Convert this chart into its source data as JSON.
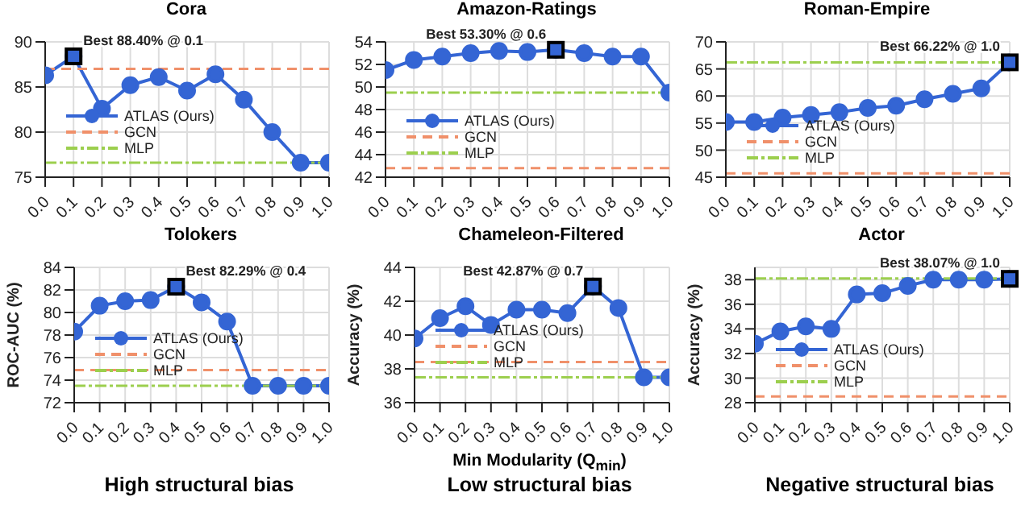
{
  "chart_data": [
    {
      "type": "line",
      "title": "Cora",
      "x": [
        0,
        0.1,
        0.2,
        0.3,
        0.4,
        0.5,
        0.6,
        0.7,
        0.8,
        0.9,
        1
      ],
      "xlim": [
        0,
        1
      ],
      "xticks": [
        {
          "value": 0,
          "label": "0.0"
        },
        {
          "value": 0.1,
          "label": "0.1"
        },
        {
          "value": 0.2,
          "label": "0.2"
        },
        {
          "value": 0.3,
          "label": "0.3"
        },
        {
          "value": 0.4,
          "label": "0.4"
        },
        {
          "value": 0.5,
          "label": "0.5"
        },
        {
          "value": 0.6,
          "label": "0.6"
        },
        {
          "value": 0.7,
          "label": "0.7"
        },
        {
          "value": 0.8,
          "label": "0.8"
        },
        {
          "value": 0.9,
          "label": "0.9"
        },
        {
          "value": 1,
          "label": "1.0"
        }
      ],
      "ylim": [
        75,
        90
      ],
      "yticks": [
        75,
        80,
        85,
        90
      ],
      "grid": true,
      "legend": "bottom left",
      "series": [
        {
          "name": "ATLAS (Ours)",
          "color": "#3465d4",
          "marker": "circle",
          "line_style": "solid",
          "values": [
            86.3,
            88.4,
            82.6,
            85.2,
            86.1,
            84.6,
            86.4,
            83.6,
            80.0,
            76.6,
            76.6
          ]
        },
        {
          "name": "GCN",
          "color": "#f0906a",
          "marker": "none",
          "line_style": "dashed",
          "values": [
            87.0,
            87.0,
            87.0,
            87.0,
            87.0,
            87.0,
            87.0,
            87.0,
            87.0,
            87.0,
            87.0
          ]
        },
        {
          "name": "MLP",
          "color": "#9ccf4e",
          "marker": "none",
          "line_style": "dotted",
          "values": [
            76.6,
            76.6,
            76.6,
            76.6,
            76.6,
            76.6,
            76.6,
            76.6,
            76.6,
            76.6,
            76.6
          ]
        }
      ],
      "annotations": [
        {
          "text": "Best 88.40% @ 0.1",
          "x": 0.1,
          "y": 88.4
        }
      ]
    },
    {
      "type": "line",
      "title": "Amazon-Ratings",
      "x": [
        0,
        0.1,
        0.2,
        0.3,
        0.4,
        0.5,
        0.6,
        0.7,
        0.8,
        0.9,
        1
      ],
      "xlim": [
        0,
        1
      ],
      "xticks": [
        {
          "value": 0,
          "label": "0.0"
        },
        {
          "value": 0.1,
          "label": "0.1"
        },
        {
          "value": 0.2,
          "label": "0.2"
        },
        {
          "value": 0.3,
          "label": "0.3"
        },
        {
          "value": 0.4,
          "label": "0.4"
        },
        {
          "value": 0.5,
          "label": "0.5"
        },
        {
          "value": 0.6,
          "label": "0.6"
        },
        {
          "value": 0.7,
          "label": "0.7"
        },
        {
          "value": 0.8,
          "label": "0.8"
        },
        {
          "value": 0.9,
          "label": "0.9"
        },
        {
          "value": 1,
          "label": "1.0"
        }
      ],
      "ylim": [
        42,
        54
      ],
      "yticks": [
        42,
        44,
        46,
        48,
        50,
        52,
        54
      ],
      "grid": true,
      "legend": "bottom left",
      "series": [
        {
          "name": "ATLAS (Ours)",
          "color": "#3465d4",
          "marker": "circle",
          "line_style": "solid",
          "values": [
            51.5,
            52.4,
            52.7,
            53.0,
            53.2,
            53.1,
            53.3,
            53.0,
            52.7,
            52.7,
            49.5
          ]
        },
        {
          "name": "GCN",
          "color": "#f0906a",
          "marker": "none",
          "line_style": "dashed",
          "values": [
            42.8,
            42.8,
            42.8,
            42.8,
            42.8,
            42.8,
            42.8,
            42.8,
            42.8,
            42.8,
            42.8
          ]
        },
        {
          "name": "MLP",
          "color": "#9ccf4e",
          "marker": "none",
          "line_style": "dotted",
          "values": [
            49.5,
            49.5,
            49.5,
            49.5,
            49.5,
            49.5,
            49.5,
            49.5,
            49.5,
            49.5,
            49.5
          ]
        }
      ],
      "annotations": [
        {
          "text": "Best 53.30% @ 0.6",
          "x": 0.6,
          "y": 53.3
        }
      ]
    },
    {
      "type": "line",
      "title": "Roman-Empire",
      "x": [
        0,
        0.1,
        0.2,
        0.3,
        0.4,
        0.5,
        0.6,
        0.7,
        0.8,
        0.9,
        1
      ],
      "xlim": [
        0,
        1
      ],
      "xticks": [
        {
          "value": 0,
          "label": "0.0"
        },
        {
          "value": 0.1,
          "label": "0.1"
        },
        {
          "value": 0.2,
          "label": "0.2"
        },
        {
          "value": 0.3,
          "label": "0.3"
        },
        {
          "value": 0.4,
          "label": "0.4"
        },
        {
          "value": 0.5,
          "label": "0.5"
        },
        {
          "value": 0.6,
          "label": "0.6"
        },
        {
          "value": 0.7,
          "label": "0.7"
        },
        {
          "value": 0.8,
          "label": "0.8"
        },
        {
          "value": 0.9,
          "label": "0.9"
        },
        {
          "value": 1,
          "label": "1.0"
        }
      ],
      "ylim": [
        45,
        70
      ],
      "yticks": [
        45,
        50,
        55,
        60,
        65,
        70
      ],
      "grid": true,
      "legend": "bottom left",
      "series": [
        {
          "name": "ATLAS (Ours)",
          "color": "#3465d4",
          "marker": "circle",
          "line_style": "solid",
          "values": [
            55.2,
            55.2,
            56.0,
            56.5,
            57.0,
            57.8,
            58.2,
            59.4,
            60.4,
            61.4,
            66.22
          ]
        },
        {
          "name": "GCN",
          "color": "#f0906a",
          "marker": "none",
          "line_style": "dashed",
          "values": [
            45.7,
            45.7,
            45.7,
            45.7,
            45.7,
            45.7,
            45.7,
            45.7,
            45.7,
            45.7,
            45.7
          ]
        },
        {
          "name": "MLP",
          "color": "#9ccf4e",
          "marker": "none",
          "line_style": "dotted",
          "values": [
            66.2,
            66.2,
            66.2,
            66.2,
            66.2,
            66.2,
            66.2,
            66.2,
            66.2,
            66.2,
            66.2
          ]
        }
      ],
      "annotations": [
        {
          "text": "Best 66.22% @ 1.0",
          "x": 1,
          "y": 66.22
        }
      ]
    },
    {
      "type": "line",
      "title": "Tolokers",
      "ylabel": "ROC-AUC (%)",
      "x": [
        0,
        0.1,
        0.2,
        0.3,
        0.4,
        0.5,
        0.6,
        0.7,
        0.8,
        0.9,
        1
      ],
      "xlim": [
        0,
        1
      ],
      "xticks": [
        {
          "value": 0,
          "label": "0.0"
        },
        {
          "value": 0.1,
          "label": "0.1"
        },
        {
          "value": 0.2,
          "label": "0.2"
        },
        {
          "value": 0.3,
          "label": "0.3"
        },
        {
          "value": 0.4,
          "label": "0.4"
        },
        {
          "value": 0.5,
          "label": "0.5"
        },
        {
          "value": 0.6,
          "label": "0.6"
        },
        {
          "value": 0.7,
          "label": "0.7"
        },
        {
          "value": 0.8,
          "label": "0.8"
        },
        {
          "value": 0.9,
          "label": "0.9"
        },
        {
          "value": 1,
          "label": "1.0"
        }
      ],
      "ylim": [
        72,
        84
      ],
      "yticks": [
        72,
        74,
        76,
        78,
        80,
        82,
        84
      ],
      "grid": true,
      "legend": "bottom left",
      "series": [
        {
          "name": "ATLAS (Ours)",
          "color": "#3465d4",
          "marker": "circle",
          "line_style": "solid",
          "values": [
            78.3,
            80.6,
            81.0,
            81.1,
            82.29,
            80.9,
            79.2,
            73.5,
            73.5,
            73.5,
            73.5
          ]
        },
        {
          "name": "GCN",
          "color": "#f0906a",
          "marker": "none",
          "line_style": "dashed",
          "values": [
            74.9,
            74.9,
            74.9,
            74.9,
            74.9,
            74.9,
            74.9,
            74.9,
            74.9,
            74.9,
            74.9
          ]
        },
        {
          "name": "MLP",
          "color": "#9ccf4e",
          "marker": "none",
          "line_style": "dotted",
          "values": [
            73.5,
            73.5,
            73.5,
            73.5,
            73.5,
            73.5,
            73.5,
            73.5,
            73.5,
            73.5,
            73.5
          ]
        }
      ],
      "annotations": [
        {
          "text": "Best 82.29% @ 0.4",
          "x": 0.4,
          "y": 82.29
        },
        "High structural bias"
      ]
    },
    {
      "type": "line",
      "title": "Chameleon-Filtered",
      "xlabel": "Min Modularity (Q$_{min}$)",
      "ylabel": "Accuracy (%)",
      "x": [
        0,
        0.1,
        0.2,
        0.3,
        0.4,
        0.5,
        0.6,
        0.7,
        0.8,
        0.9,
        1
      ],
      "xlim": [
        0,
        1
      ],
      "xticks": [
        {
          "value": 0,
          "label": "0.0"
        },
        {
          "value": 0.1,
          "label": "0.1"
        },
        {
          "value": 0.2,
          "label": "0.2"
        },
        {
          "value": 0.3,
          "label": "0.3"
        },
        {
          "value": 0.4,
          "label": "0.4"
        },
        {
          "value": 0.5,
          "label": "0.5"
        },
        {
          "value": 0.6,
          "label": "0.6"
        },
        {
          "value": 0.7,
          "label": "0.7"
        },
        {
          "value": 0.8,
          "label": "0.8"
        },
        {
          "value": 0.9,
          "label": "0.9"
        },
        {
          "value": 1,
          "label": "1.0"
        }
      ],
      "ylim": [
        36,
        44
      ],
      "yticks": [
        36,
        38,
        40,
        42,
        44
      ],
      "grid": true,
      "legend": "bottom left",
      "series": [
        {
          "name": "ATLAS (Ours)",
          "color": "#3465d4",
          "marker": "circle",
          "line_style": "solid",
          "values": [
            39.8,
            41.0,
            41.7,
            40.6,
            41.5,
            41.5,
            41.3,
            42.87,
            41.6,
            37.5,
            37.5
          ]
        },
        {
          "name": "GCN",
          "color": "#f0906a",
          "marker": "none",
          "line_style": "dashed",
          "values": [
            38.4,
            38.4,
            38.4,
            38.4,
            38.4,
            38.4,
            38.4,
            38.4,
            38.4,
            38.4,
            38.4
          ]
        },
        {
          "name": "MLP",
          "color": "#9ccf4e",
          "marker": "none",
          "line_style": "dotted",
          "values": [
            37.5,
            37.5,
            37.5,
            37.5,
            37.5,
            37.5,
            37.5,
            37.5,
            37.5,
            37.5,
            37.5
          ]
        }
      ],
      "annotations": [
        {
          "text": "Best 42.87% @ 0.7",
          "x": 0.7,
          "y": 42.87
        },
        "Low structural bias"
      ]
    },
    {
      "type": "line",
      "title": "Actor",
      "ylabel": "Accuracy (%)",
      "x": [
        0,
        0.1,
        0.2,
        0.3,
        0.4,
        0.5,
        0.6,
        0.7,
        0.8,
        0.9,
        1
      ],
      "xlim": [
        0,
        1
      ],
      "xticks": [
        {
          "value": 0,
          "label": "0.0"
        },
        {
          "value": 0.1,
          "label": "0.1"
        },
        {
          "value": 0.2,
          "label": "0.2"
        },
        {
          "value": 0.3,
          "label": "0.3"
        },
        {
          "value": 0.4,
          "label": "0.4"
        },
        {
          "value": 0.5,
          "label": "0.5"
        },
        {
          "value": 0.6,
          "label": "0.6"
        },
        {
          "value": 0.7,
          "label": "0.7"
        },
        {
          "value": 0.8,
          "label": "0.8"
        },
        {
          "value": 0.9,
          "label": "0.9"
        },
        {
          "value": 1,
          "label": "1.0"
        }
      ],
      "ylim": [
        28,
        39
      ],
      "yticks": [
        28,
        30,
        32,
        34,
        36,
        38
      ],
      "grid": true,
      "legend": "bottom left",
      "series": [
        {
          "name": "ATLAS (Ours)",
          "color": "#3465d4",
          "marker": "circle",
          "line_style": "solid",
          "values": [
            32.8,
            33.8,
            34.2,
            34.0,
            36.8,
            36.9,
            37.5,
            38.0,
            38.0,
            38.0,
            38.07
          ]
        },
        {
          "name": "GCN",
          "color": "#f0906a",
          "marker": "none",
          "line_style": "dashed",
          "values": [
            28.5,
            28.5,
            28.5,
            28.5,
            28.5,
            28.5,
            28.5,
            28.5,
            28.5,
            28.5,
            28.5
          ]
        },
        {
          "name": "MLP",
          "color": "#9ccf4e",
          "marker": "none",
          "line_style": "dotted",
          "values": [
            38.1,
            38.1,
            38.1,
            38.1,
            38.1,
            38.1,
            38.1,
            38.1,
            38.1,
            38.1,
            38.1
          ]
        }
      ],
      "annotations": [
        {
          "text": "Best 38.07% @ 1.0",
          "x": 1,
          "y": 38.07
        },
        "Negative structural bias"
      ]
    }
  ]
}
